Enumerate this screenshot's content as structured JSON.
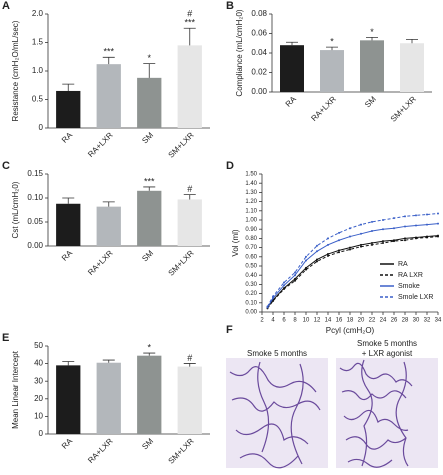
{
  "chart_data": [
    {
      "type": "bar",
      "panel_label": "A",
      "ylabel": "Resistance (cmH₂O/mL/sec)",
      "categories": [
        "RA",
        "RA+LXR",
        "SM",
        "SM+LXR"
      ],
      "values": [
        0.65,
        1.12,
        0.88,
        1.45
      ],
      "errors": [
        0.12,
        0.12,
        0.25,
        0.3
      ],
      "colors": [
        "#1c1c1c",
        "#b3b7bb",
        "#8e9391",
        "#e6e6e6"
      ],
      "annotations": [
        [],
        [
          "***"
        ],
        [
          "*"
        ],
        [
          "***",
          "#"
        ]
      ],
      "ylim": [
        0,
        2
      ],
      "yticks": [
        0,
        0.5,
        {
          "value": 1,
          "label": "1.0"
        },
        1.5,
        {
          "value": 2,
          "label": "2.0"
        }
      ]
    },
    {
      "type": "bar",
      "panel_label": "B",
      "ylabel": "Compliance (mL/cmH₂0)",
      "categories": [
        "RA",
        "RA+LXR",
        "SM",
        "SM+LXR"
      ],
      "values": [
        0.048,
        0.043,
        0.053,
        0.05
      ],
      "errors": [
        0.003,
        0.003,
        0.003,
        0.004
      ],
      "colors": [
        "#1c1c1c",
        "#b3b7bb",
        "#8e9391",
        "#e6e6e6"
      ],
      "annotations": [
        [],
        [
          "*"
        ],
        [
          "*"
        ],
        []
      ],
      "ylim": [
        0,
        0.08
      ],
      "yticks": [
        {
          "value": 0,
          "label": "0.00"
        },
        {
          "value": 0.02,
          "label": "0.02"
        },
        {
          "value": 0.04,
          "label": "0.04"
        },
        {
          "value": 0.06,
          "label": "0.06"
        },
        {
          "value": 0.08,
          "label": "0.08"
        }
      ]
    },
    {
      "type": "bar",
      "panel_label": "C",
      "ylabel": "Cst (mL/cmH₂0)",
      "categories": [
        "RA",
        "RA+LXR",
        "SM",
        "SM+LXR"
      ],
      "values": [
        0.088,
        0.082,
        0.115,
        0.097
      ],
      "errors": [
        0.012,
        0.01,
        0.008,
        0.01
      ],
      "colors": [
        "#1c1c1c",
        "#b3b7bb",
        "#8e9391",
        "#e6e6e6"
      ],
      "annotations": [
        [],
        [],
        [
          "***"
        ],
        [
          "#"
        ]
      ],
      "ylim": [
        0,
        0.15
      ],
      "yticks": [
        {
          "value": 0,
          "label": "0.00"
        },
        {
          "value": 0.05,
          "label": "0.05"
        },
        {
          "value": 0.1,
          "label": "0.10"
        },
        {
          "value": 0.15,
          "label": "0.15"
        }
      ]
    },
    {
      "type": "line",
      "panel_label": "D",
      "xlabel": "Pcyl (cmH₂O)",
      "ylabel": "Vol (ml)",
      "x": [
        3,
        4,
        6,
        8,
        10,
        12,
        14,
        16,
        18,
        20,
        22,
        24,
        26,
        28,
        30,
        32,
        34
      ],
      "series": [
        {
          "name": "RA",
          "color": "#111111",
          "style": "solid",
          "values": [
            0.05,
            0.13,
            0.26,
            0.36,
            0.48,
            0.57,
            0.63,
            0.67,
            0.7,
            0.73,
            0.75,
            0.77,
            0.78,
            0.8,
            0.81,
            0.82,
            0.83
          ]
        },
        {
          "name": "RA LXR",
          "color": "#111111",
          "style": "dashed",
          "values": [
            0.04,
            0.12,
            0.25,
            0.34,
            0.46,
            0.55,
            0.61,
            0.65,
            0.68,
            0.71,
            0.73,
            0.75,
            0.77,
            0.78,
            0.8,
            0.81,
            0.82
          ]
        },
        {
          "name": "Smoke",
          "color": "#3a5fc8",
          "style": "solid",
          "values": [
            0.05,
            0.15,
            0.29,
            0.4,
            0.56,
            0.66,
            0.73,
            0.78,
            0.82,
            0.85,
            0.88,
            0.9,
            0.91,
            0.93,
            0.94,
            0.95,
            0.96
          ]
        },
        {
          "name": "Smole LXR",
          "color": "#3a5fc8",
          "style": "dashed",
          "values": [
            0.06,
            0.17,
            0.32,
            0.43,
            0.6,
            0.72,
            0.8,
            0.86,
            0.91,
            0.95,
            0.98,
            1.0,
            1.02,
            1.04,
            1.05,
            1.06,
            1.07
          ]
        }
      ],
      "legend": "lower right",
      "xlim": [
        2,
        34
      ],
      "xticks": [
        2,
        4,
        6,
        8,
        10,
        12,
        14,
        16,
        18,
        20,
        22,
        24,
        26,
        28,
        30,
        32,
        34
      ],
      "ylim": [
        0,
        1.5
      ],
      "yticks": [
        {
          "value": 0,
          "label": "0.00"
        },
        {
          "value": 0.1,
          "label": "0.10"
        },
        {
          "value": 0.2,
          "label": "0.20"
        },
        {
          "value": 0.3,
          "label": "0.30"
        },
        {
          "value": 0.4,
          "label": "0.40"
        },
        {
          "value": 0.5,
          "label": "0.50"
        },
        {
          "value": 0.6,
          "label": "0.60"
        },
        {
          "value": 0.7,
          "label": "0.70"
        },
        {
          "value": 0.8,
          "label": "0.80"
        },
        {
          "value": 0.9,
          "label": "0.90"
        },
        {
          "value": 1,
          "label": "1.00"
        },
        {
          "value": 1.1,
          "label": "1.10"
        },
        {
          "value": 1.2,
          "label": "1.20"
        },
        {
          "value": 1.3,
          "label": "1.30"
        },
        {
          "value": 1.4,
          "label": "1.40"
        },
        {
          "value": 1.5,
          "label": "1.50"
        }
      ]
    },
    {
      "type": "bar",
      "panel_label": "E",
      "ylabel": "Mean Linear Intercept",
      "categories": [
        "RA",
        "RA+LXR",
        "SM",
        "SM+LXR"
      ],
      "values": [
        39,
        40.5,
        44.5,
        38.3
      ],
      "errors": [
        2.2,
        1.5,
        1.5,
        1.8
      ],
      "colors": [
        "#1c1c1c",
        "#b3b7bb",
        "#8e9391",
        "#e6e6e6"
      ],
      "annotations": [
        [],
        [],
        [
          "*"
        ],
        [
          "#"
        ]
      ],
      "ylim": [
        0,
        50
      ],
      "yticks": [
        0,
        10,
        20,
        30,
        40,
        50
      ]
    }
  ],
  "image_panel": {
    "panel_label": "F",
    "captions": [
      [
        "Smoke 5 months"
      ],
      [
        "Smoke 5 months",
        "+ LXR agonist"
      ]
    ]
  }
}
